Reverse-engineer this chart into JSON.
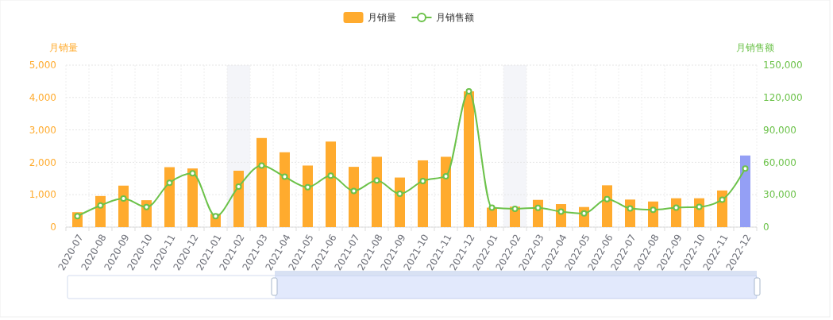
{
  "chart_data": {
    "type": "bar",
    "categories": [
      "2020-07",
      "2020-08",
      "2020-09",
      "2020-10",
      "2020-11",
      "2020-12",
      "2021-01",
      "2021-02",
      "2021-03",
      "2021-04",
      "2021-05",
      "2021-06",
      "2021-07",
      "2021-08",
      "2021-09",
      "2021-10",
      "2021-11",
      "2021-12",
      "2022-01",
      "2022-02",
      "2022-03",
      "2022-04",
      "2022-05",
      "2022-06",
      "2022-07",
      "2022-08",
      "2022-09",
      "2022-10",
      "2022-11",
      "2022-12"
    ],
    "series": [
      {
        "name": "月销量",
        "color": "#ffab2e",
        "colors": [
          "#ffab2e",
          "#ffab2e",
          "#ffab2e",
          "#ffab2e",
          "#ffab2e",
          "#ffab2e",
          "#ffab2e",
          "#ffab2e",
          "#ffab2e",
          "#ffab2e",
          "#ffab2e",
          "#ffab2e",
          "#ffab2e",
          "#ffab2e",
          "#ffab2e",
          "#ffab2e",
          "#ffab2e",
          "#ffab2e",
          "#ffab2e",
          "#ffab2e",
          "#ffab2e",
          "#ffab2e",
          "#ffab2e",
          "#ffab2e",
          "#ffab2e",
          "#ffab2e",
          "#ffab2e",
          "#ffab2e",
          "#ffab2e",
          "#949ff5"
        ],
        "values": [
          460,
          960,
          1280,
          830,
          1850,
          1810,
          410,
          1740,
          2750,
          2310,
          1900,
          2640,
          1860,
          2170,
          1530,
          2060,
          2170,
          4190,
          600,
          630,
          840,
          710,
          620,
          1290,
          850,
          790,
          890,
          890,
          1130,
          2210
        ]
      },
      {
        "name": "月销售额",
        "type": "line",
        "axis": "y2",
        "color": "#6cc24a",
        "values": [
          10100,
          20000,
          26400,
          18500,
          41000,
          49800,
          10100,
          37500,
          57000,
          46600,
          37000,
          47600,
          33500,
          43200,
          30800,
          42700,
          47100,
          125800,
          18000,
          17000,
          17800,
          14300,
          12600,
          25900,
          17300,
          16000,
          18000,
          18700,
          25400,
          54300
        ]
      }
    ],
    "ylabel": "月销量",
    "y2label": "月销售额",
    "ylim": [
      0,
      5000
    ],
    "yticks": [
      0,
      {
        "value": 1000,
        "label": "1,000"
      },
      {
        "value": 2000,
        "label": "2,000"
      },
      {
        "value": 3000,
        "label": "3,000"
      },
      {
        "value": 4000,
        "label": "4,000"
      },
      {
        "value": 5000,
        "label": "5,000"
      }
    ],
    "y2lim": [
      0,
      150000
    ],
    "y2ticks": [
      0,
      {
        "value": 30000,
        "label": "30,000"
      },
      {
        "value": 60000,
        "label": "60,000"
      },
      {
        "value": 90000,
        "label": "90,000"
      },
      {
        "value": 120000,
        "label": "120,000"
      },
      {
        "value": 150000,
        "label": "150,000"
      }
    ],
    "bands": [
      {
        "axis": "x",
        "from": "2021-02",
        "to": "2021-02",
        "color": "#f4f5f9"
      },
      {
        "axis": "x",
        "from": "2022-02",
        "to": "2022-02",
        "color": "#f4f5f9"
      }
    ],
    "grid": true,
    "legend": "top",
    "marker": "circle"
  }
}
